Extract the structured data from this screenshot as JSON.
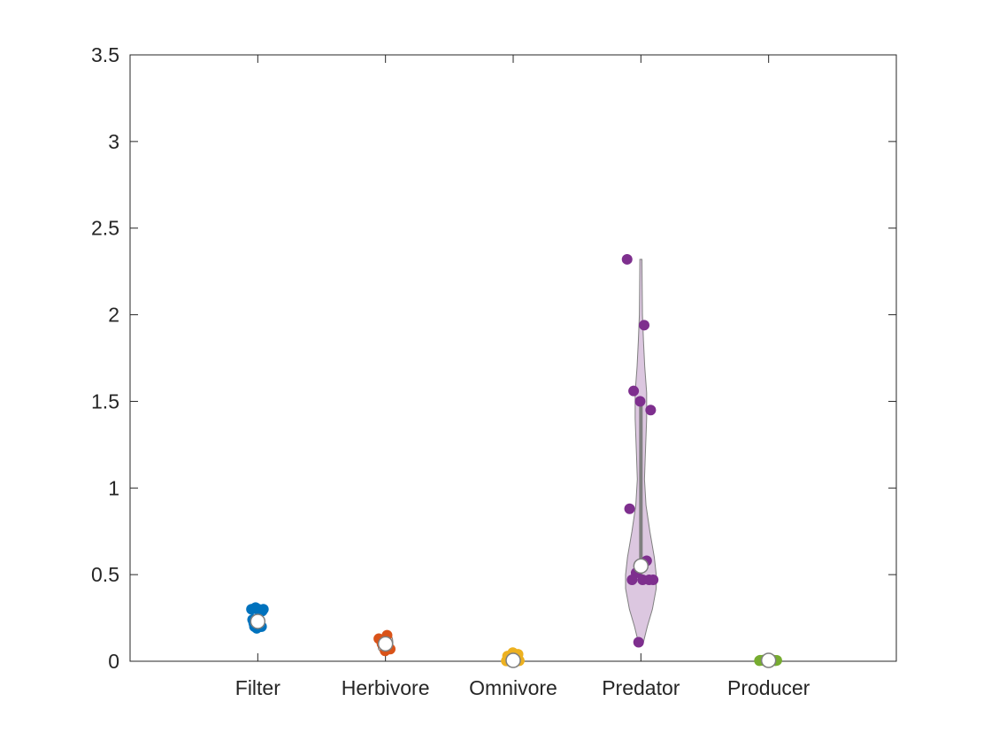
{
  "chart_data": {
    "type": "violin",
    "title": "",
    "xlabel": "",
    "ylabel": "",
    "ylim": [
      0,
      3.5
    ],
    "yticks": [
      0,
      0.5,
      1,
      1.5,
      2,
      2.5,
      3,
      3.5
    ],
    "ytick_labels": [
      "0",
      "0.5",
      "1",
      "1.5",
      "2",
      "2.5",
      "3",
      "3.5"
    ],
    "grid": false,
    "legend": "none",
    "categories": [
      "Filter",
      "Herbivore",
      "Omnivore",
      "Predator",
      "Producer"
    ],
    "groups": [
      {
        "name": "Filter",
        "color": "#0072BD",
        "fill": "#A9C8E8",
        "median": 0.23,
        "q1": 0.2,
        "q3": 0.3,
        "points": [
          0.3,
          0.23,
          0.2,
          0.29,
          0.3,
          0.24,
          0.2,
          0.31,
          0.3,
          0.3,
          0.22,
          0.2,
          0.19
        ],
        "violin": [
          [
            0.19,
            0.055
          ],
          [
            0.2,
            0.055
          ],
          [
            0.22,
            0.045
          ],
          [
            0.24,
            0.03
          ],
          [
            0.26,
            0.04
          ],
          [
            0.28,
            0.05
          ],
          [
            0.3,
            0.05
          ]
        ]
      },
      {
        "name": "Herbivore",
        "color": "#D95319",
        "fill": "#F4C3AE",
        "median": 0.1,
        "q1": 0.06,
        "q3": 0.14,
        "points": [
          0.13,
          0.15,
          0.1,
          0.07,
          0.06
        ],
        "violin": [
          [
            0.06,
            0.045
          ],
          [
            0.07,
            0.055
          ],
          [
            0.09,
            0.058
          ],
          [
            0.11,
            0.058
          ],
          [
            0.13,
            0.055
          ],
          [
            0.14,
            0.05
          ]
        ]
      },
      {
        "name": "Omnivore",
        "color": "#EDB120",
        "fill": "#F9E3A9",
        "median": 0.005,
        "q1": 0.0,
        "q3": 0.02,
        "points": [
          0.002,
          0.01,
          0.02,
          0.04,
          0.05,
          0.03,
          0.015,
          0.008,
          0.003,
          0.002,
          0.001,
          0.002
        ],
        "violin": [
          [
            0.0,
            0.06
          ],
          [
            0.005,
            0.045
          ],
          [
            0.01,
            0.03
          ],
          [
            0.02,
            0.02
          ],
          [
            0.03,
            0.01
          ],
          [
            0.05,
            0.003
          ]
        ]
      },
      {
        "name": "Predator",
        "color": "#7E2F8E",
        "fill": "#D6BDDB",
        "median": 0.55,
        "q1": 0.46,
        "q3": 1.51,
        "points": [
          2.32,
          1.94,
          1.56,
          1.45,
          1.5,
          0.88,
          0.58,
          0.51,
          0.47,
          0.47,
          0.47,
          0.47,
          0.11
        ],
        "violin": [
          [
            0.11,
            0.02
          ],
          [
            0.2,
            0.05
          ],
          [
            0.3,
            0.09
          ],
          [
            0.42,
            0.12
          ],
          [
            0.5,
            0.12
          ],
          [
            0.6,
            0.105
          ],
          [
            0.75,
            0.07
          ],
          [
            0.9,
            0.04
          ],
          [
            1.05,
            0.028
          ],
          [
            1.2,
            0.035
          ],
          [
            1.4,
            0.045
          ],
          [
            1.55,
            0.045
          ],
          [
            1.7,
            0.03
          ],
          [
            1.85,
            0.02
          ],
          [
            2.0,
            0.012
          ],
          [
            2.15,
            0.01
          ],
          [
            2.32,
            0.008
          ]
        ]
      },
      {
        "name": "Producer",
        "color": "#77AC30",
        "fill": "#CFE3B3",
        "median": 0.005,
        "q1": 0.003,
        "q3": 0.008,
        "points": [
          0.003,
          0.005,
          0.007,
          0.004,
          0.006,
          0.005,
          0.008,
          0.003,
          0.005,
          0.004,
          0.006,
          0.005,
          0.004,
          0.006,
          0.005,
          0.003,
          0.004
        ],
        "violin": [
          [
            0.0,
            0.06
          ],
          [
            0.005,
            0.08
          ],
          [
            0.01,
            0.06
          ],
          [
            0.015,
            0.02
          ]
        ]
      }
    ]
  }
}
